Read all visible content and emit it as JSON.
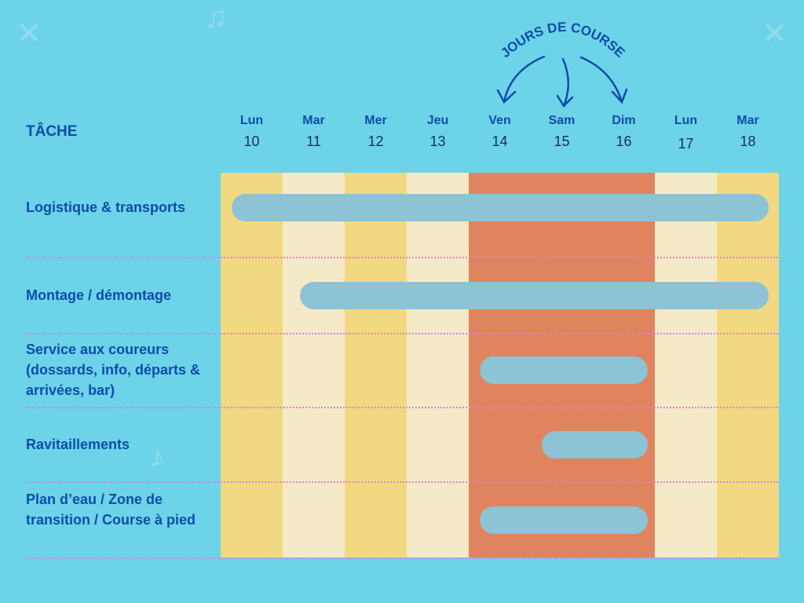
{
  "header": {
    "task_label": "TÂCHE",
    "race_days_label": "JOURS DE COURSE"
  },
  "colors": {
    "background": "#6dd3e8",
    "text": "#0e4cab",
    "weekday": "#f2d880",
    "light": "#f5eac8",
    "race": "#e08460",
    "bar": "#8cc3d5",
    "separator": "#d77fe6"
  },
  "chart_data": {
    "type": "gantt",
    "days": [
      {
        "name": "Lun",
        "num": "10",
        "kind": "weekday"
      },
      {
        "name": "Mar",
        "num": "11",
        "kind": "light"
      },
      {
        "name": "Mer",
        "num": "12",
        "kind": "weekday"
      },
      {
        "name": "Jeu",
        "num": "13",
        "kind": "light"
      },
      {
        "name": "Ven",
        "num": "14",
        "kind": "race"
      },
      {
        "name": "Sam",
        "num": "15",
        "kind": "race"
      },
      {
        "name": "Dim",
        "num": "16",
        "kind": "race"
      },
      {
        "name": "Lun",
        "num": "17",
        "kind": "light"
      },
      {
        "name": "Mar",
        "num": "18",
        "kind": "weekday"
      }
    ],
    "tasks": [
      {
        "label": "Logistique & transports",
        "start": "10",
        "end": "18"
      },
      {
        "label": "Montage / démontage",
        "start": "11",
        "end": "18"
      },
      {
        "label": "Service aux coureurs (dossards, info, départs & arrivées, bar)",
        "start": "14",
        "end": "16"
      },
      {
        "label": "Ravitaillements",
        "start": "15",
        "end": "16"
      },
      {
        "label": "Plan d’eau / Zone de transition / Course à pied",
        "start": "14",
        "end": "16"
      }
    ]
  }
}
